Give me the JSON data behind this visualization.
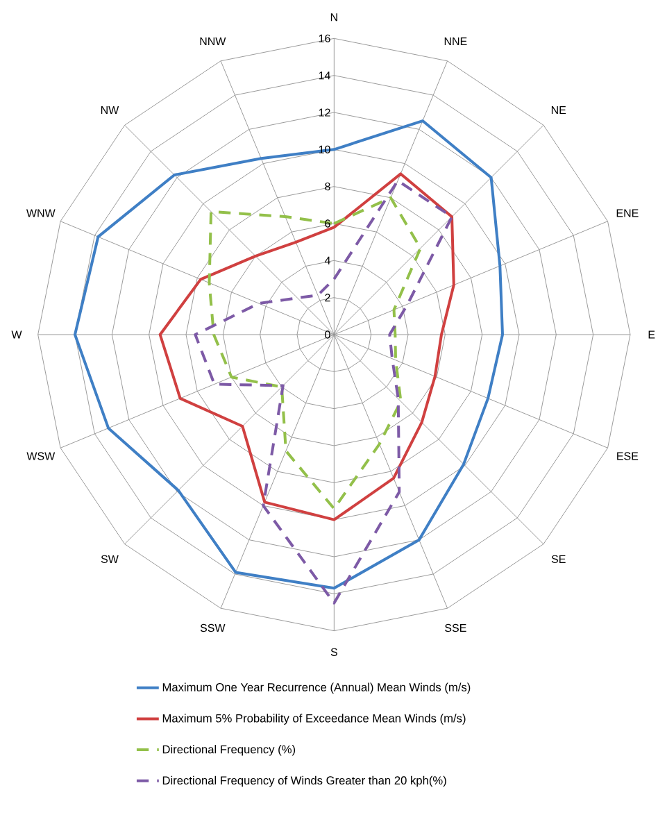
{
  "chart_data": {
    "type": "radar",
    "categories": [
      "N",
      "NNE",
      "NE",
      "ENE",
      "E",
      "ESE",
      "SE",
      "SSE",
      "S",
      "SSW",
      "SW",
      "WSW",
      "W",
      "WNW",
      "NW",
      "NNW"
    ],
    "ylim": [
      0,
      16
    ],
    "yticks": [
      0,
      2,
      4,
      6,
      8,
      10,
      12,
      14,
      16
    ],
    "grid": true,
    "legend": "bottom",
    "marker": "none",
    "series": [
      {
        "name": "Maximum One Year Recurrence (Annual) Mean Winds (m/s)",
        "color": "#3f7fc5",
        "line_style": "solid",
        "values": [
          10.0,
          12.5,
          12.0,
          9.7,
          9.1,
          9.0,
          9.9,
          12.0,
          13.7,
          13.9,
          11.9,
          13.2,
          14.0,
          13.8,
          12.2,
          10.3
        ]
      },
      {
        "name": "Maximum 5% Probability of Exceedance Mean Winds (m/s)",
        "color": "#d04040",
        "line_style": "solid",
        "values": [
          5.8,
          9.4,
          9.0,
          7.0,
          5.8,
          5.9,
          6.7,
          8.4,
          10.0,
          9.8,
          7.0,
          9.0,
          9.4,
          7.8,
          6.0,
          5.4
        ]
      },
      {
        "name": "Directional Frequency (%)",
        "color": "#93c04a",
        "line_style": "dashed",
        "values": [
          6.0,
          8.0,
          6.6,
          3.5,
          3.3,
          3.6,
          5.1,
          6.4,
          9.4,
          6.8,
          4.0,
          6.0,
          6.5,
          7.3,
          9.4,
          6.9
        ]
      },
      {
        "name": "Directional Frequency  of Winds Greater than 20 kph(%)",
        "color": "#7d5aa6",
        "line_style": "dashed",
        "values": [
          3.0,
          9.0,
          9.0,
          4.3,
          3.0,
          3.4,
          4.9,
          9.2,
          14.5,
          10.0,
          3.9,
          7.0,
          7.5,
          4.4,
          2.8,
          2.3
        ]
      }
    ]
  }
}
